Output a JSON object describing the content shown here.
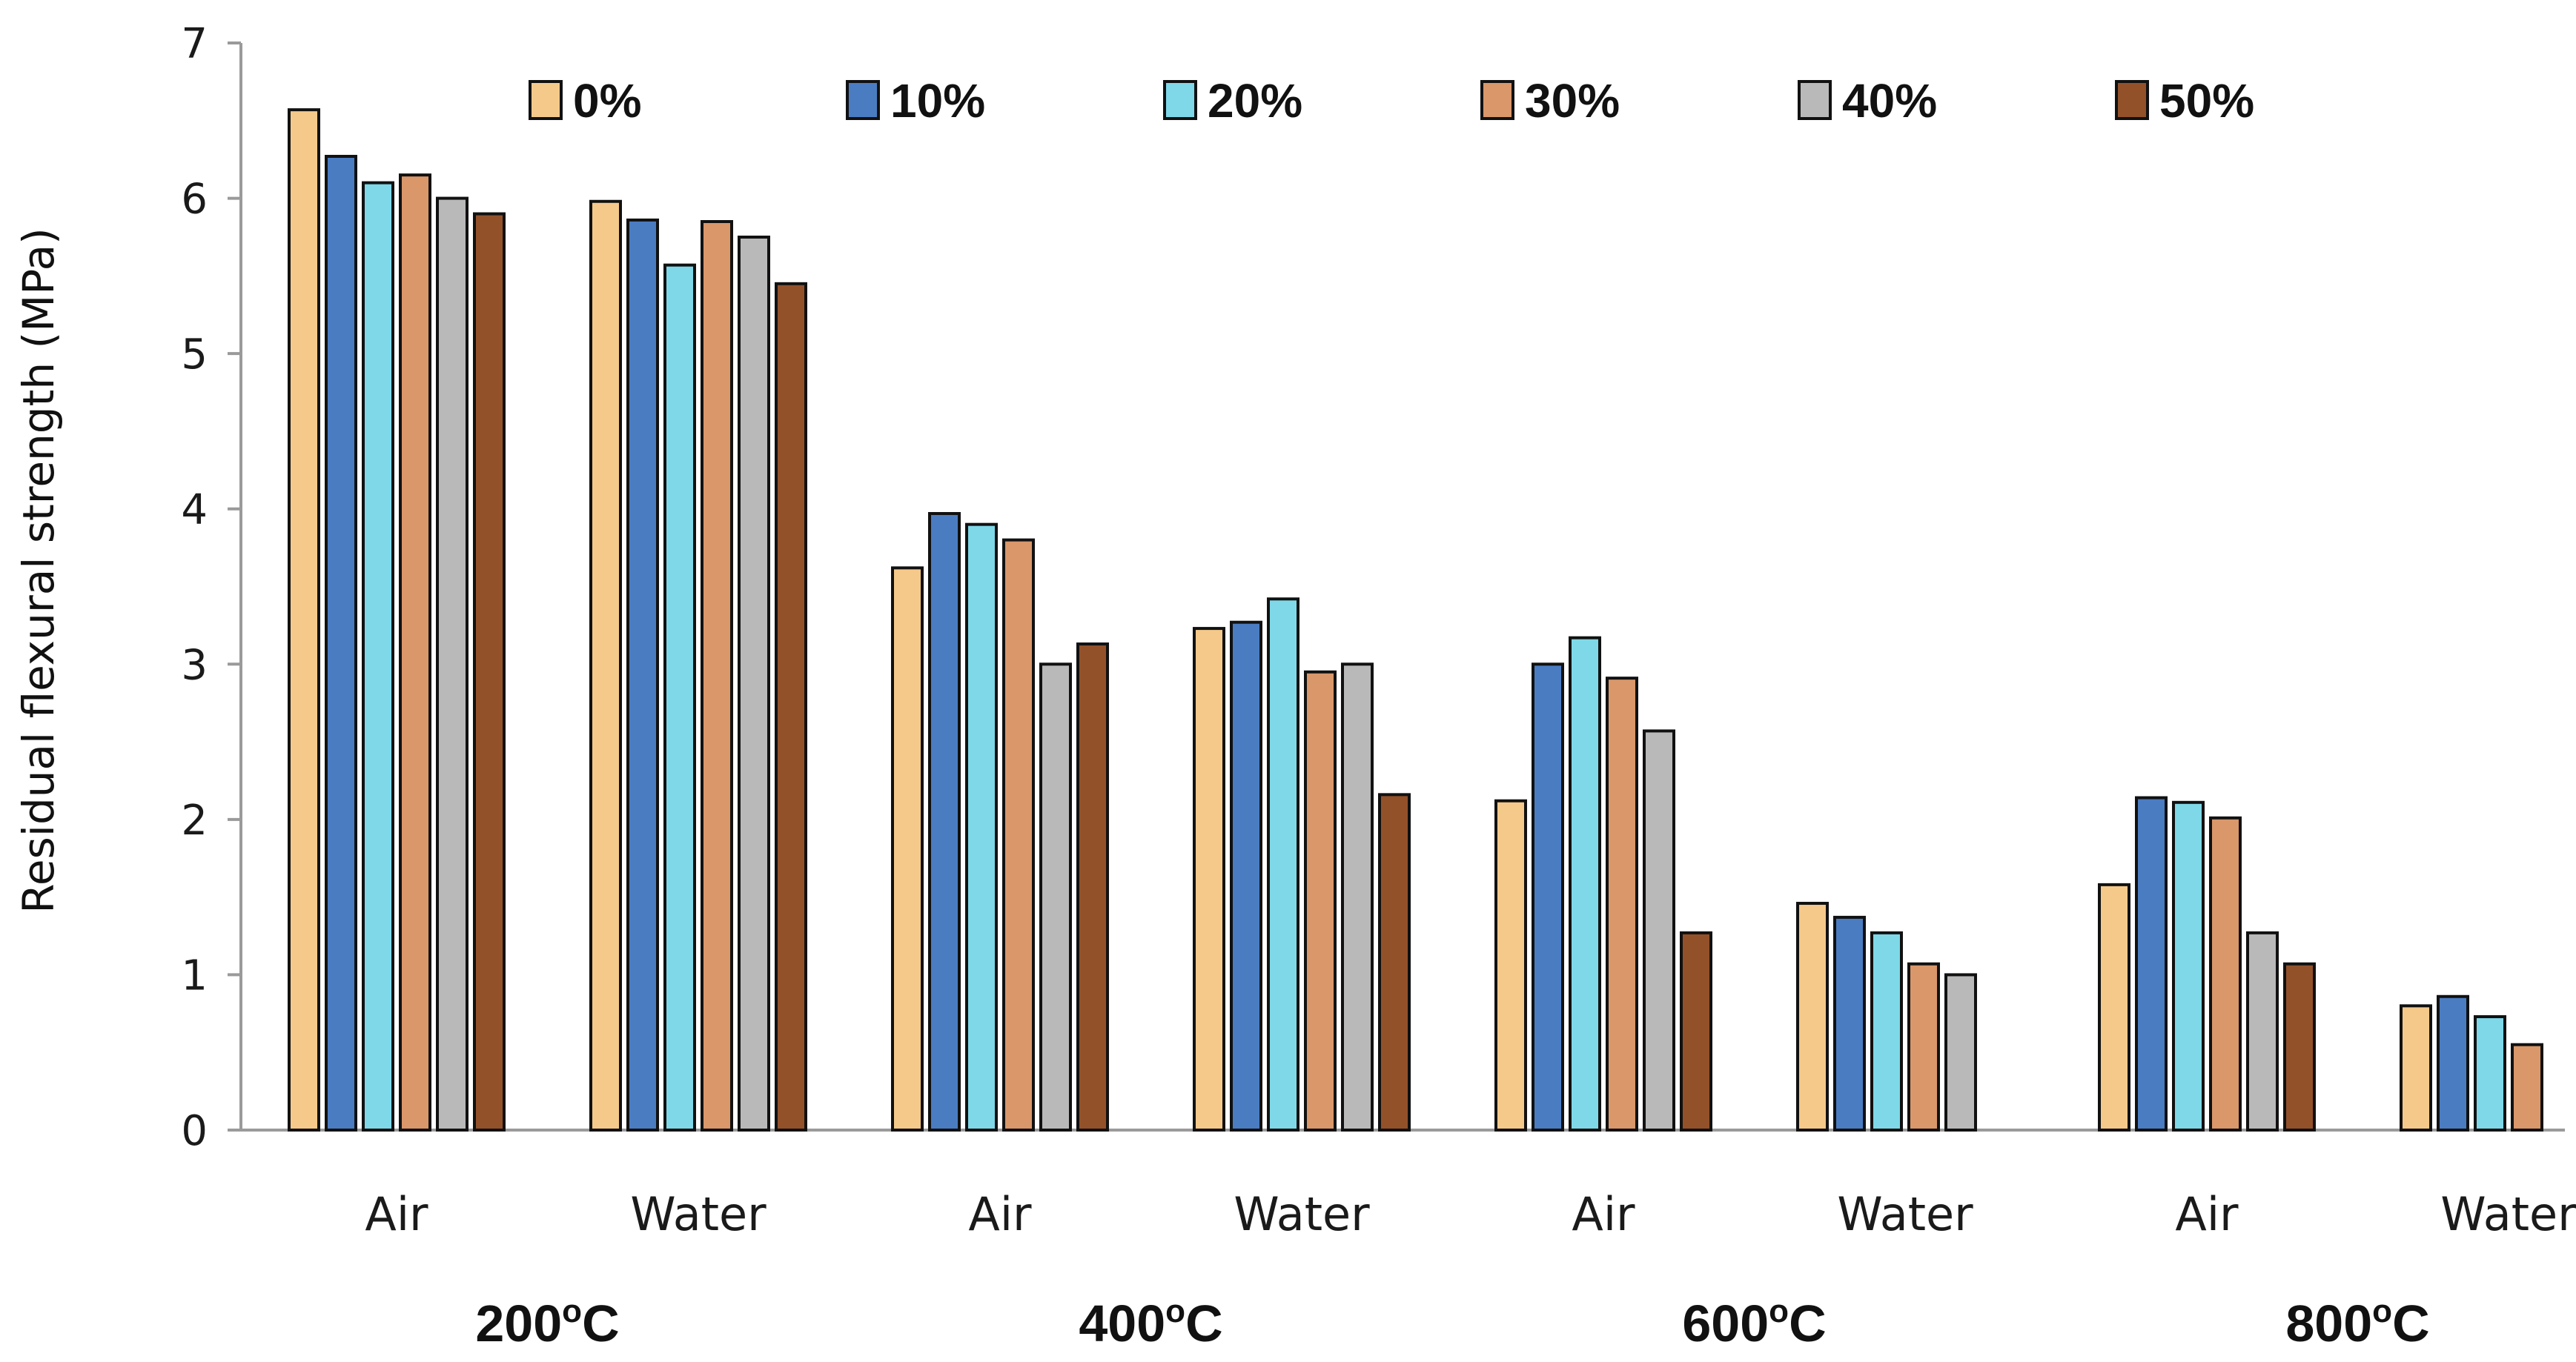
{
  "chart_data": {
    "type": "bar",
    "title": "",
    "ylabel": "Residual flexural strength (MPa)",
    "xlabel": "",
    "ylim": [
      0,
      7
    ],
    "yticks": [
      "0",
      "1",
      "2",
      "3",
      "4",
      "5",
      "6",
      "7"
    ],
    "categories": [
      "Air",
      "Water",
      "Air",
      "Water",
      "Air",
      "Water",
      "Air",
      "Water"
    ],
    "groups": [
      {
        "label": "200ºC",
        "temp": "200",
        "unit": "C",
        "categories": [
          "Air",
          "Water"
        ]
      },
      {
        "label": "400ºC",
        "temp": "400",
        "unit": "C",
        "categories": [
          "Air",
          "Water"
        ]
      },
      {
        "label": "600ºC",
        "temp": "600",
        "unit": "C",
        "categories": [
          "Air",
          "Water"
        ]
      },
      {
        "label": "800ºC",
        "temp": "800",
        "unit": "C",
        "categories": [
          "Air",
          "Water"
        ]
      }
    ],
    "series": [
      {
        "name": "0%",
        "color": "#F5C98A",
        "values": [
          6.57,
          5.98,
          3.62,
          3.23,
          2.12,
          1.46,
          1.58,
          0.8
        ]
      },
      {
        "name": "10%",
        "color": "#4A7CC2",
        "values": [
          6.27,
          5.86,
          3.97,
          3.27,
          3.0,
          1.37,
          2.14,
          0.86
        ]
      },
      {
        "name": "20%",
        "color": "#7ED8E8",
        "values": [
          6.1,
          5.57,
          3.9,
          3.42,
          3.17,
          1.27,
          2.11,
          0.73
        ]
      },
      {
        "name": "30%",
        "color": "#D9976A",
        "values": [
          6.15,
          5.85,
          3.8,
          2.95,
          2.91,
          1.07,
          2.01,
          0.55
        ]
      },
      {
        "name": "40%",
        "color": "#B9B9B9",
        "values": [
          6.0,
          5.75,
          3.0,
          3.0,
          2.57,
          1.0,
          1.27,
          null
        ]
      },
      {
        "name": "50%",
        "color": "#93512A",
        "values": [
          5.9,
          5.45,
          3.13,
          2.16,
          1.27,
          null,
          1.07,
          null
        ]
      }
    ],
    "legend_position": "top",
    "grid": false
  }
}
